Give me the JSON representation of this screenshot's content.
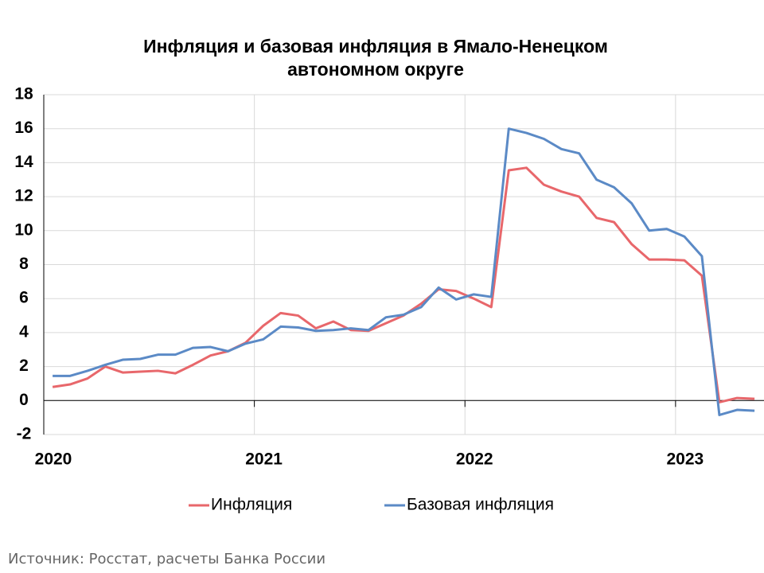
{
  "chart_data": {
    "type": "line",
    "title": "Инфляция и базовая инфляция в Ямало-Ненецком автономном округе",
    "source": "Источник: Росстат, расчеты Банка России",
    "x": [
      2020.042,
      2020.125,
      2020.208,
      2020.292,
      2020.375,
      2020.458,
      2020.542,
      2020.625,
      2020.708,
      2020.792,
      2020.875,
      2020.958,
      2021.042,
      2021.125,
      2021.208,
      2021.292,
      2021.375,
      2021.458,
      2021.542,
      2021.625,
      2021.708,
      2021.792,
      2021.875,
      2021.958,
      2022.042,
      2022.125,
      2022.208,
      2022.292,
      2022.375,
      2022.458,
      2022.542,
      2022.625,
      2022.708,
      2022.792,
      2022.875,
      2022.958,
      2023.042,
      2023.125,
      2023.208,
      2023.292,
      2023.375
    ],
    "series": [
      {
        "name": "Инфляция",
        "color": "#e8676b",
        "values": [
          0.8,
          0.95,
          1.3,
          2.0,
          1.65,
          1.7,
          1.75,
          1.6,
          2.1,
          2.65,
          2.9,
          3.4,
          4.4,
          5.15,
          5.0,
          4.25,
          4.65,
          4.15,
          4.1,
          4.55,
          5.0,
          5.7,
          6.55,
          6.45,
          6.0,
          5.5,
          13.55,
          13.7,
          12.7,
          12.3,
          12.0,
          10.75,
          10.5,
          9.2,
          8.3,
          8.3,
          8.25,
          7.35,
          -0.1,
          0.15,
          0.1
        ]
      },
      {
        "name": "Базовая инфляция",
        "color": "#5b8ac6",
        "values": [
          1.45,
          1.45,
          1.75,
          2.1,
          2.4,
          2.45,
          2.7,
          2.7,
          3.1,
          3.15,
          2.9,
          3.35,
          3.6,
          4.35,
          4.3,
          4.1,
          4.15,
          4.25,
          4.15,
          4.9,
          5.05,
          5.5,
          6.65,
          5.95,
          6.25,
          6.1,
          16.0,
          15.75,
          15.4,
          14.8,
          14.55,
          13.0,
          12.55,
          11.6,
          10.0,
          10.1,
          9.65,
          8.5,
          -0.85,
          -0.55,
          -0.6
        ]
      }
    ],
    "xlim": [
      2020,
      2023.42
    ],
    "xticks": [
      2020,
      2021,
      2022,
      2023
    ],
    "ylim": [
      -2,
      18
    ],
    "yticks": [
      -2,
      0,
      2,
      4,
      6,
      8,
      10,
      12,
      14,
      16,
      18
    ],
    "grid": true,
    "legend": "bottom"
  }
}
